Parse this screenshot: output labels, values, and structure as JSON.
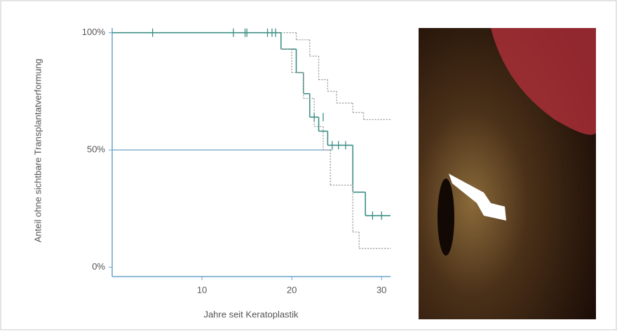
{
  "chart_data": {
    "type": "line",
    "y_label": "Anteil ohne sichtbare Transplantatverformung",
    "x_label": "Jahre seit Keratoplastik",
    "xlim": [
      0,
      31
    ],
    "xticks": [
      10,
      20,
      30
    ],
    "ylim": [
      -4,
      102
    ],
    "yticks": [
      {
        "value": 0,
        "label": "0%"
      },
      {
        "value": 50,
        "label": "50%"
      },
      {
        "value": 100,
        "label": "100%"
      }
    ],
    "series": [
      {
        "color": "#3c8f86",
        "style": "solid",
        "x": [
          0,
          18.8,
          20.5,
          21.3,
          22,
          23,
          24,
          26.8,
          28.2,
          31
        ],
        "values": [
          100,
          93,
          83,
          74,
          64,
          58,
          52,
          32,
          22,
          22
        ]
      },
      {
        "color": "#999999",
        "style": "dotted",
        "x": [
          18.8,
          20.5,
          22,
          23,
          24,
          25,
          26.8,
          28,
          31
        ],
        "values": [
          100,
          97,
          90,
          80,
          75,
          70,
          66,
          63,
          63
        ]
      },
      {
        "color": "#999999",
        "style": "dotted",
        "x": [
          18.8,
          20,
          21.3,
          22.5,
          23.5,
          24.3,
          26.8,
          27.5,
          31
        ],
        "values": [
          93,
          83,
          72,
          60,
          50,
          35,
          15,
          8,
          8
        ]
      }
    ],
    "censored": {
      "color": "#3c8f86",
      "x": [
        4.5,
        13.5,
        14.8,
        15,
        17.3,
        17.8,
        18.2,
        22.5,
        23.5,
        24.5,
        25.2,
        26,
        29,
        30
      ],
      "values": [
        100,
        100,
        100,
        100,
        100,
        100,
        100,
        64,
        64,
        52,
        52,
        52,
        22,
        22
      ]
    },
    "reference_line": {
      "color": "#6ba3c8",
      "value": 50,
      "x_end": 24.5
    },
    "axis_color": "#6ba3c8"
  }
}
